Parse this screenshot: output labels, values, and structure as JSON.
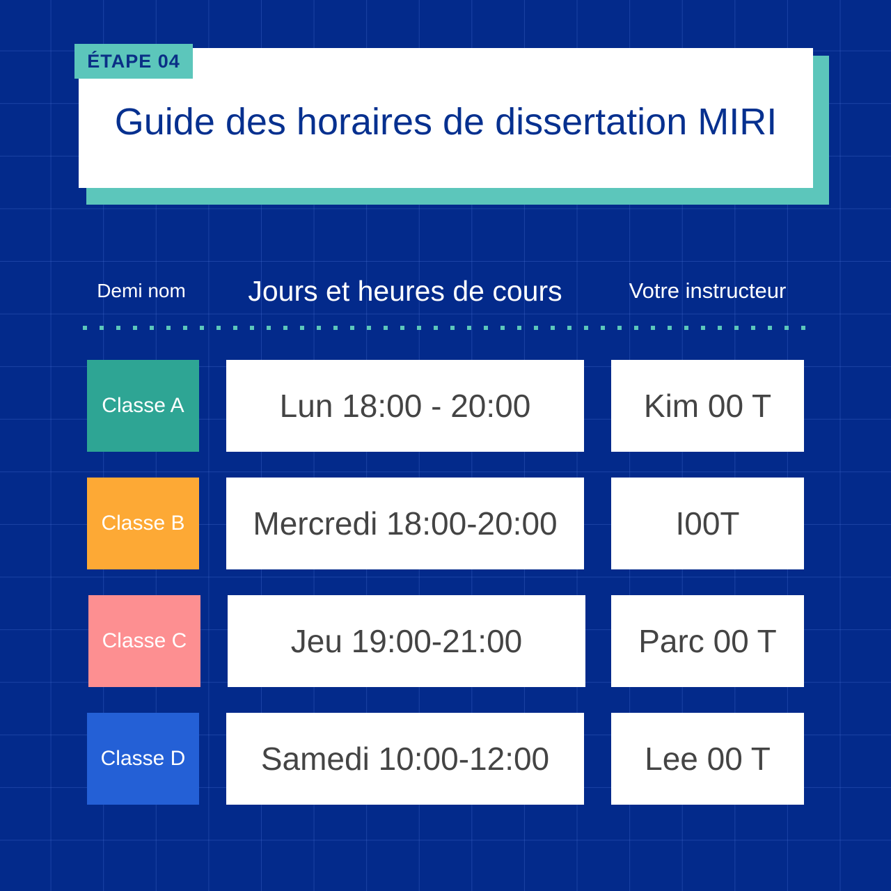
{
  "badge": "ÉTAPE 04",
  "title": "Guide des horaires de dissertation MIRI",
  "headers": {
    "name": "Demi nom",
    "schedule": "Jours et heures de cours",
    "instructor": "Votre instructeur"
  },
  "rows": [
    {
      "class": "Classe A",
      "schedule": "Lun 18:00 - 20:00",
      "instructor": "Kim 00 T",
      "color": "#2ea594"
    },
    {
      "class": "Classe B",
      "schedule": "Mercredi 18:00-20:00",
      "instructor": "I00T",
      "color": "#fda935"
    },
    {
      "class": "Classe C",
      "schedule": "Jeu 19:00-21:00",
      "instructor": "Parc 00 T",
      "color": "#fd8f91"
    },
    {
      "class": "Classe D",
      "schedule": "Samedi 10:00-12:00",
      "instructor": "Lee 00 T",
      "color": "#2460d6"
    }
  ],
  "colors": {
    "background": "#032a8b",
    "accent": "#5cc6bb",
    "title": "#06308f"
  }
}
